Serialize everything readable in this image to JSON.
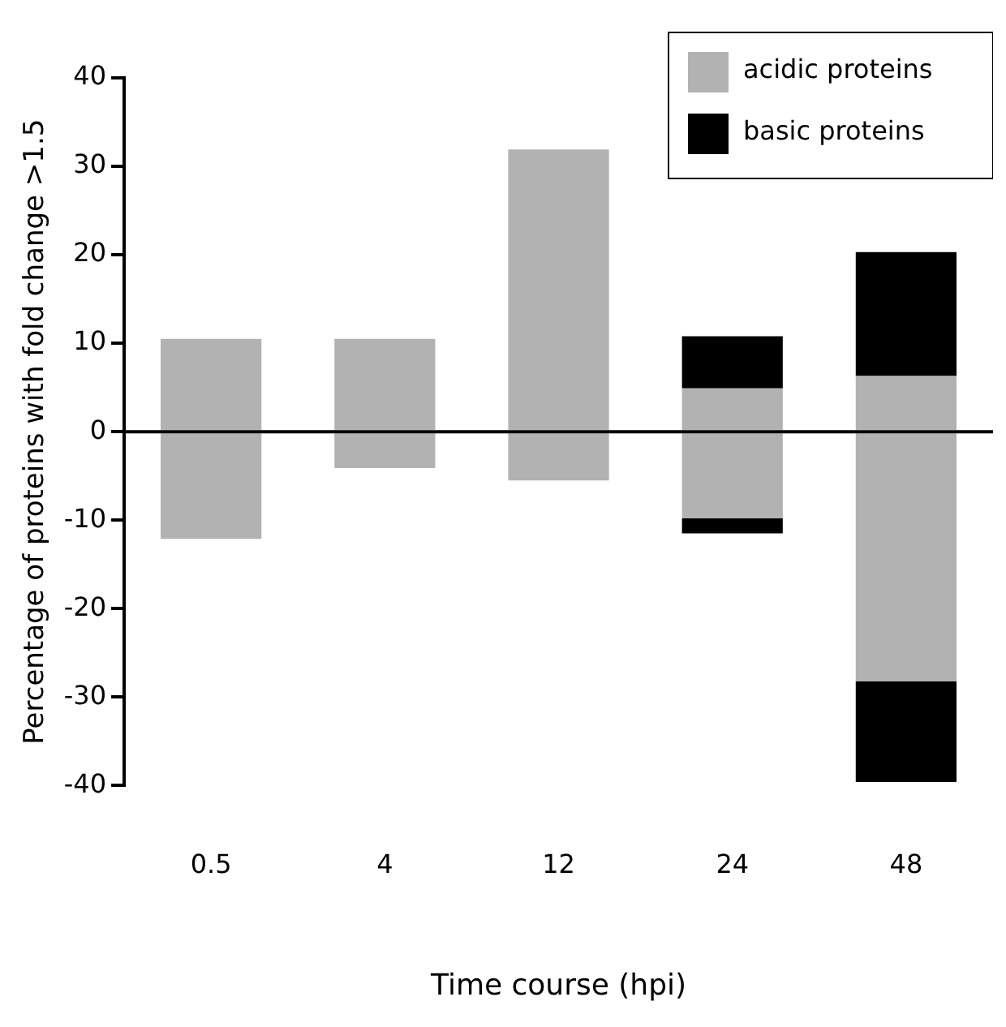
{
  "chart_data": {
    "type": "bar",
    "xlabel": "Time course (hpi)",
    "ylabel": "Percentage of proteins with fold change >1.5",
    "categories": [
      "0.5",
      "4",
      "12",
      "24",
      "48"
    ],
    "stacked": true,
    "series": [
      {
        "name": "acidic proteins",
        "color": "#b2b2b2",
        "values": [
          10.5,
          10.5,
          31.9,
          4.9,
          6.3
        ]
      },
      {
        "name": "basic proteins",
        "color": "#000000",
        "values": [
          null,
          null,
          null,
          5.9,
          14.0
        ]
      },
      {
        "color": "#b2b2b2",
        "values": [
          -12.1,
          -4.1,
          -5.5,
          -9.8,
          -28.2
        ]
      },
      {
        "color": "#000000",
        "values": [
          null,
          null,
          null,
          -1.7,
          -11.4
        ]
      }
    ],
    "ylim": [
      -40,
      40
    ],
    "yticks": [
      -40,
      -30,
      -20,
      -10,
      0,
      10,
      20,
      30,
      40
    ],
    "grid": false,
    "legend": "top right",
    "ref_lines": [
      {
        "axis": "y",
        "value": 0
      }
    ]
  }
}
